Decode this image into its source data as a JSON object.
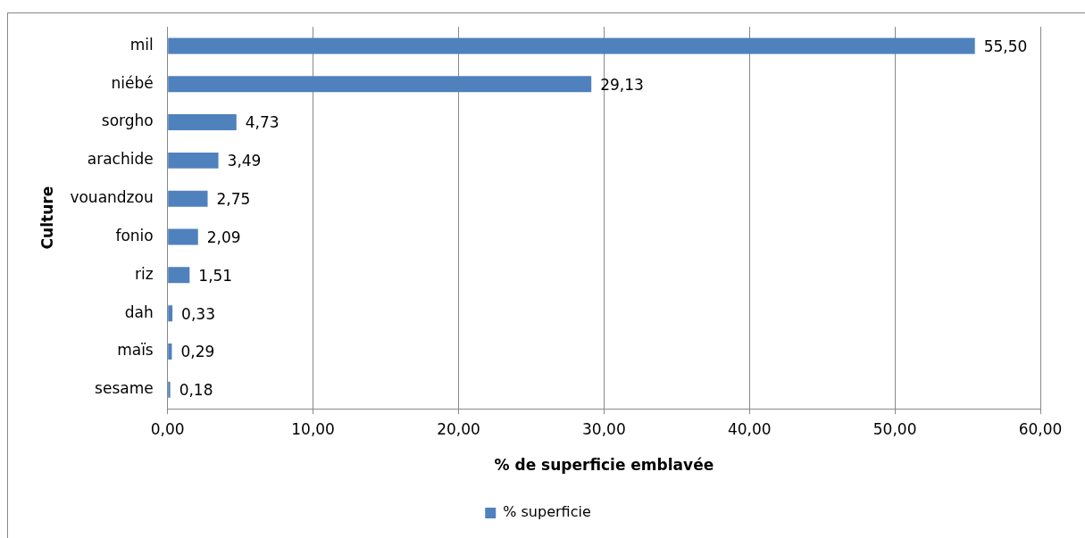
{
  "chart_data": {
    "type": "bar",
    "orientation": "horizontal",
    "xlabel": "% de superficie emblavée",
    "ylabel": "Culture",
    "categories": [
      "mil",
      "niébé",
      "sorgho",
      "arachide",
      "vouandzou",
      "fonio",
      "riz",
      "dah",
      "maïs",
      "sesame"
    ],
    "series": [
      {
        "name": "% superficie",
        "color": "#4f81bd",
        "values": [
          55.5,
          29.13,
          4.73,
          3.49,
          2.75,
          2.09,
          1.51,
          0.33,
          0.29,
          0.18
        ],
        "value_labels": [
          "55,50",
          "29,13",
          "4,73",
          "3,49",
          "2,75",
          "2,09",
          "1,51",
          "0,33",
          "0,29",
          "0,18"
        ]
      }
    ],
    "xlim": [
      0,
      60
    ],
    "xticks": [
      {
        "value": 0,
        "label": "0,00"
      },
      {
        "value": 10,
        "label": "10,00"
      },
      {
        "value": 20,
        "label": "20,00"
      },
      {
        "value": 30,
        "label": "30,00"
      },
      {
        "value": 40,
        "label": "40,00"
      },
      {
        "value": 50,
        "label": "50,00"
      },
      {
        "value": 60,
        "label": "60,00"
      }
    ],
    "grid": "x",
    "legend": "bottom"
  }
}
